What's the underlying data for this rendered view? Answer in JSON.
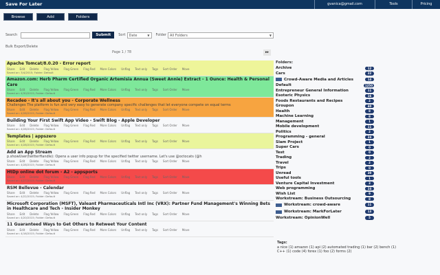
{
  "header": {
    "title": "Save For Later",
    "email": "gvanica@gmail.com",
    "tools": "Tools",
    "pricing": "Pricing"
  },
  "buttons": {
    "browse": "Browse",
    "add": "Add",
    "folders": "Folders"
  },
  "search": {
    "label": "Search",
    "value": "",
    "submit": "Submit",
    "sort_label": "Sort",
    "sort_value": "Date",
    "folder_label": "Folder",
    "folder_value": "All Folders"
  },
  "bulk_link": "Bulk Export/Delete",
  "pager": {
    "text": "Page 1 / 78",
    "next_icon": "fast-forward-icon"
  },
  "actions": [
    "Share",
    "Edit",
    "Delete",
    "Flag Yellow",
    "Flag Green",
    "Flag Red",
    "More Colors",
    "Unflag",
    "Text only",
    "Tags",
    "Sort Order",
    "Move"
  ],
  "items": [
    {
      "title": "Apache Tomcat/8.0.20 - Error report",
      "desc": "",
      "saved": "Saved on: 3/4/2015; Folder: Default",
      "color": "#eef59a"
    },
    {
      "title": "Amazon.com: Herb Pharm Certified Organic Artemisia Annua (Sweet Annie) Extract - 1 Ounce: Health & Personal Care",
      "desc": "",
      "saved": "Saved on: 4/30/2015; Folder: Default",
      "color": "#7ee89a"
    },
    {
      "title": "Recadeo - It's all about you - Corporate Wellness",
      "desc": "Challenges The platform is fun and very easy to generate company specific challenges that let everyone compete on equal terms",
      "saved": "Saved on: 4/28/2015; Folder: Default",
      "color": "#f7a440"
    },
    {
      "title": "Building Your First Swift App Video - Swift Blog - Apple Developer",
      "desc": "",
      "saved": "Saved on: 4/28/2015; Folder: Default",
      "color": "#f7f8fa"
    },
    {
      "title": "Templates | appszero",
      "desc": "",
      "saved": "Saved on: 4/28/2015; Folder: Default",
      "color": "#eaf59c"
    },
    {
      "title": "Add an App Stream",
      "desc": "p.showUser(twitterHandle): Opens a user info popup for the specified twitter username. Let's use @octocats (@h",
      "saved": "Saved on: 4/28/2015; Folder: Default",
      "color": "#f7f8fa"
    },
    {
      "title": "HtDp online dot forum - A2 - appsports",
      "desc": "",
      "saved": "Saved on: 4/27/2015; Folder: Default",
      "color": "#f44a4a"
    },
    {
      "title": "RSM Bellevue - Calendar",
      "desc": "",
      "saved": "Saved on: 4/22/2015; Folder: Default",
      "color": "#f7f8fa"
    },
    {
      "title": "Microsoft Corporation (MSFT), Valeant Pharmaceuticals Intl Inc (VRX): Partner Fund Management's Winning Bets in Healthcare and Tech - Insider Monkey",
      "desc": "",
      "saved": "Saved on: 4/20/2015; Folder: Default",
      "color": "#f7f8fa"
    },
    {
      "title": "11 Guaranteed Ways to Get Others to Retweet Your Content",
      "desc": "",
      "saved": "Saved on: 4/16/2015; Folder: Default",
      "color": "#f7f8fa"
    }
  ],
  "sidebar": {
    "header": "Folders:",
    "folders": [
      {
        "name": "Archive",
        "count": "12",
        "swatch": false
      },
      {
        "name": "Cars",
        "count": "22",
        "swatch": false
      },
      {
        "name": "Crowd-Aware Media and Articles",
        "count": "14",
        "swatch": true
      },
      {
        "name": "Default",
        "count": "1250",
        "swatch": false
      },
      {
        "name": "Entrepreneur General Information",
        "count": "11",
        "swatch": false
      },
      {
        "name": "Esoteric Physics",
        "count": "16",
        "swatch": false
      },
      {
        "name": "Foods Restaurants and Recipes",
        "count": "2",
        "swatch": false
      },
      {
        "name": "Groupon",
        "count": "40",
        "swatch": false
      },
      {
        "name": "Health",
        "count": "8",
        "swatch": false
      },
      {
        "name": "Machine Learning",
        "count": "8",
        "swatch": false
      },
      {
        "name": "Management",
        "count": "1",
        "swatch": false
      },
      {
        "name": "Mobile development",
        "count": "11",
        "swatch": false
      },
      {
        "name": "Politics",
        "count": "2",
        "swatch": false
      },
      {
        "name": "Programming - general",
        "count": "24",
        "swatch": false
      },
      {
        "name": "Slam Project",
        "count": "1",
        "swatch": false
      },
      {
        "name": "Super Cars",
        "count": "0",
        "swatch": false
      },
      {
        "name": "Test",
        "count": "0",
        "swatch": false
      },
      {
        "name": "Trading",
        "count": "2",
        "swatch": false
      },
      {
        "name": "Travel",
        "count": "2",
        "swatch": false
      },
      {
        "name": "Trips",
        "count": "0",
        "swatch": false
      },
      {
        "name": "Unread",
        "count": "30",
        "swatch": false
      },
      {
        "name": "Useful tools",
        "count": "1",
        "swatch": false
      },
      {
        "name": "Venture Capital Investment",
        "count": "3",
        "swatch": false
      },
      {
        "name": "Web programming",
        "count": "24",
        "swatch": false
      },
      {
        "name": "Wish List",
        "count": "9",
        "swatch": false
      },
      {
        "name": "Workstream: Business Outsourcing",
        "count": "8",
        "swatch": false
      },
      {
        "name": "Workstream: crowd-aware",
        "count": "11",
        "swatch": true
      },
      {
        "name": "Workstream: MarkForLater",
        "count": "13",
        "swatch": true
      },
      {
        "name": "Workstream: OpinionWell",
        "count": "5",
        "swatch": false
      }
    ],
    "tags_header": "Tags:",
    "tags_text": "a nice (1) amazon (1) api (2) automated trading (1) bar (2) bench (1) C++ (1) code (4) forex (1) foo (2) forms (2)"
  },
  "colors": {
    "header_bg": "#0e3560",
    "button_bg": "#10284a",
    "badge_bg": "#1f3a6e"
  }
}
